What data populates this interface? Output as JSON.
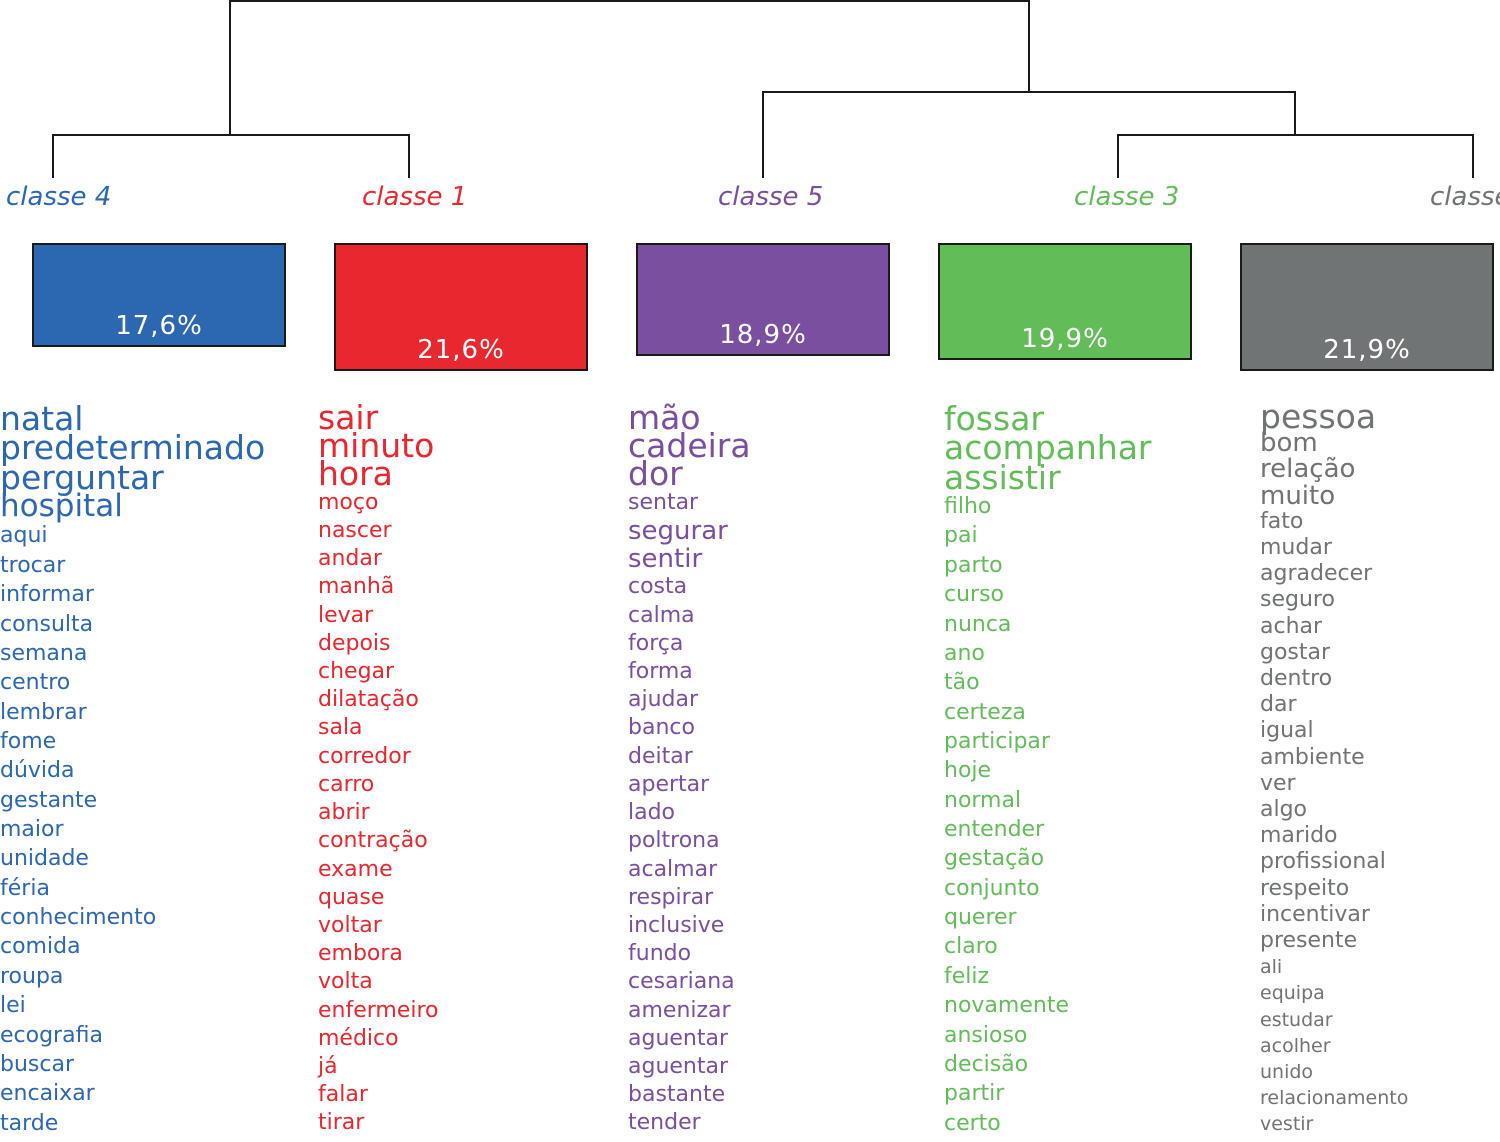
{
  "classes": [
    {
      "label": "classe 4",
      "percent": "17,6%",
      "color": "#2c67b2",
      "words": [
        "natal",
        "predeterminado",
        "perguntar",
        "hospital",
        "aqui",
        "trocar",
        "informar",
        "consulta",
        "semana",
        "centro",
        "lembrar",
        "fome",
        "dúvida",
        "gestante",
        "maior",
        "unidade",
        "féria",
        "conhecimento",
        "comida",
        "roupa",
        "lei",
        "ecografia",
        "buscar",
        "encaixar",
        "tarde"
      ]
    },
    {
      "label": "classe 1",
      "percent": "21,6%",
      "color": "#e8272f",
      "words": [
        "sair",
        "minuto",
        "hora",
        "moço",
        "nascer",
        "andar",
        "manhã",
        "levar",
        "depois",
        "chegar",
        "dilatação",
        "sala",
        "corredor",
        "carro",
        "abrir",
        "contração",
        "exame",
        "quase",
        "voltar",
        "embora",
        "volta",
        "enfermeiro",
        "médico",
        "já",
        "falar",
        "tirar"
      ]
    },
    {
      "label": "classe 5",
      "percent": "18,9%",
      "color": "#7b4fa0",
      "words": [
        "mão",
        "cadeira",
        "dor",
        "sentar",
        "segurar",
        "sentir",
        "costa",
        "calma",
        "força",
        "forma",
        "ajudar",
        "banco",
        "deitar",
        "apertar",
        "lado",
        "poltrona",
        "acalmar",
        "respirar",
        "inclusive",
        "fundo",
        "cesariana",
        "amenizar",
        "aguentar",
        "aguentar",
        "bastante",
        "tender"
      ]
    },
    {
      "label": "classe 3",
      "percent": "19,9%",
      "color": "#62bd58",
      "words": [
        "fossar",
        "acompanhar",
        "assistir",
        "filho",
        "pai",
        "parto",
        "curso",
        "nunca",
        "ano",
        "tão",
        "certeza",
        "participar",
        "hoje",
        "normal",
        "entender",
        "gestação",
        "conjunto",
        "querer",
        "claro",
        "feliz",
        "novamente",
        "ansioso",
        "decisão",
        "partir",
        "certo"
      ]
    },
    {
      "label": "classe",
      "percent": "21,9%",
      "color": "#717474",
      "words": [
        "pessoa",
        "bom",
        "relação",
        "muito",
        "fato",
        "mudar",
        "agradecer",
        "seguro",
        "achar",
        "gostar",
        "dentro",
        "dar",
        "igual",
        "ambiente",
        "ver",
        "algo",
        "marido",
        "profissional",
        "respeito",
        "incentivar",
        "presente",
        "ali",
        "equipa",
        "estudar",
        "acolher",
        "unido",
        "relacionamento",
        "vestir"
      ]
    }
  ]
}
